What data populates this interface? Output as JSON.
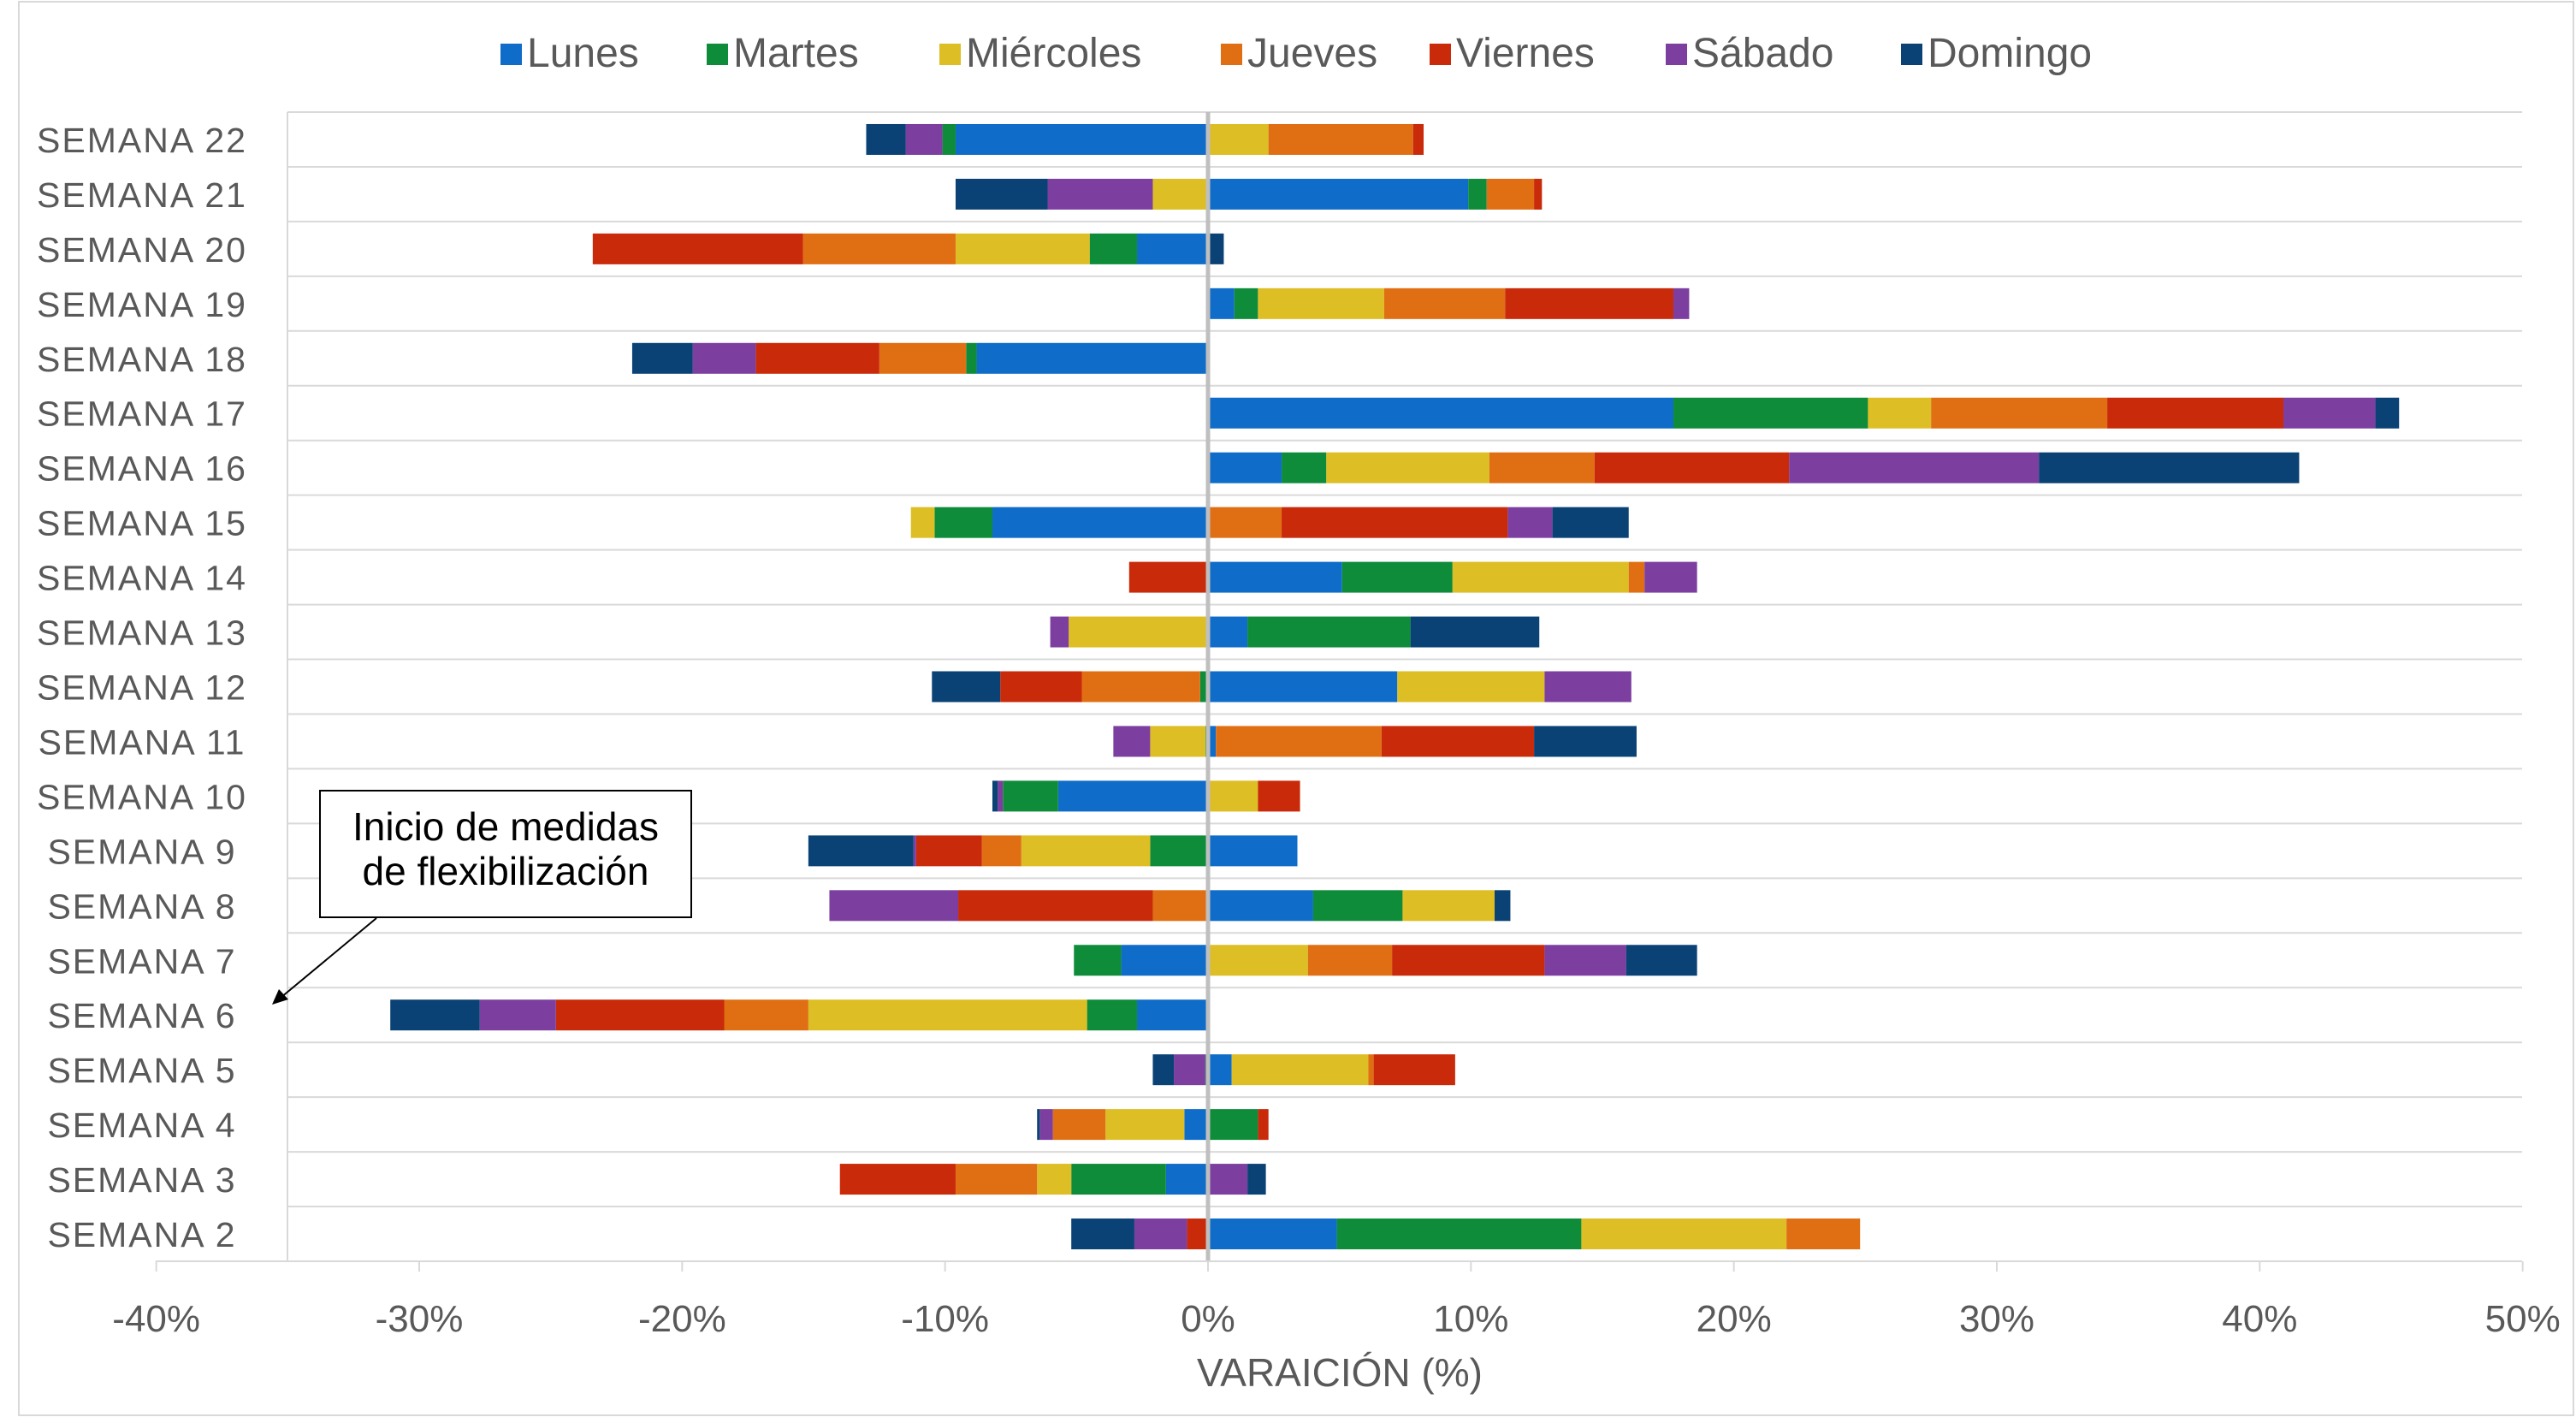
{
  "chart_data": {
    "type": "bar",
    "orientation": "horizontal",
    "stacked": "diverging",
    "title": "",
    "xlabel": "VARAICIÓN (%)",
    "ylabel": "",
    "xlim": [
      -40,
      50
    ],
    "xticks": [
      -40,
      -30,
      -20,
      -10,
      0,
      10,
      20,
      30,
      40,
      50
    ],
    "xtick_labels": [
      "-40%",
      "-30%",
      "-20%",
      "-10%",
      "0%",
      "10%",
      "20%",
      "30%",
      "40%",
      "50%"
    ],
    "grid": true,
    "legend_position": "top",
    "categories": [
      "SEMANA 2",
      "SEMANA 3",
      "SEMANA 4",
      "SEMANA 5",
      "SEMANA 6",
      "SEMANA 7",
      "SEMANA 8",
      "SEMANA 9",
      "SEMANA 10",
      "SEMANA 11",
      "SEMANA 12",
      "SEMANA 13",
      "SEMANA 14",
      "SEMANA 15",
      "SEMANA 16",
      "SEMANA 17",
      "SEMANA 18",
      "SEMANA 19",
      "SEMANA 20",
      "SEMANA 21",
      "SEMANA 22"
    ],
    "series": [
      {
        "name": "Lunes",
        "color": "#0F6CC8",
        "values": [
          4.9,
          -1.6,
          -0.9,
          0.9,
          -2.7,
          -3.3,
          4.0,
          3.4,
          -5.7,
          0.3,
          7.2,
          1.5,
          5.1,
          -8.2,
          2.8,
          17.7,
          -8.8,
          1.0,
          -2.7,
          9.9,
          -9.6
        ]
      },
      {
        "name": "Martes",
        "color": "#0E8C3A",
        "values": [
          9.3,
          -3.6,
          1.9,
          -0.1,
          -1.9,
          -1.8,
          3.4,
          -2.2,
          -2.1,
          -0.1,
          -0.3,
          6.2,
          4.2,
          -2.2,
          1.7,
          7.4,
          -0.4,
          0.9,
          -1.8,
          0.7,
          -0.5
        ]
      },
      {
        "name": "Miércoles",
        "color": "#DDBE24",
        "values": [
          7.8,
          -1.3,
          -3.0,
          5.2,
          -10.6,
          3.8,
          3.5,
          -4.9,
          1.9,
          -2.1,
          5.6,
          -5.3,
          6.7,
          -0.9,
          6.2,
          2.4,
          0.0,
          4.8,
          -5.1,
          -2.1,
          2.3
        ]
      },
      {
        "name": "Jueves",
        "color": "#E06F14",
        "values": [
          2.8,
          -3.1,
          -2.0,
          0.2,
          -3.2,
          3.2,
          -2.1,
          -1.5,
          0.0,
          6.3,
          -4.5,
          0.0,
          0.6,
          2.8,
          4.0,
          6.7,
          -3.3,
          4.6,
          -5.8,
          1.8,
          5.5
        ]
      },
      {
        "name": "Viernes",
        "color": "#C92A0A",
        "values": [
          -0.8,
          -4.4,
          0.4,
          3.1,
          -6.4,
          5.8,
          -7.4,
          -2.5,
          1.6,
          5.8,
          -3.1,
          0.0,
          -3.0,
          8.6,
          7.4,
          6.7,
          -4.7,
          6.4,
          -8.0,
          0.3,
          0.4
        ]
      },
      {
        "name": "Sábado",
        "color": "#7C3FA0",
        "values": [
          -2.0,
          1.5,
          -0.5,
          -1.2,
          -2.9,
          3.1,
          -4.9,
          -0.1,
          -0.2,
          -1.4,
          3.3,
          -0.7,
          2.0,
          1.7,
          9.5,
          3.5,
          -2.4,
          0.6,
          0.0,
          -4.0,
          -1.4
        ]
      },
      {
        "name": "Domingo",
        "color": "#0B4275",
        "values": [
          -2.4,
          0.7,
          -0.1,
          -0.8,
          -3.4,
          2.7,
          0.6,
          -4.0,
          -0.2,
          3.9,
          -2.6,
          4.9,
          0.0,
          2.9,
          9.9,
          0.9,
          -2.3,
          0.0,
          0.6,
          -3.5,
          -1.5
        ]
      }
    ],
    "annotations": [
      {
        "text_lines": [
          "Inicio de medidas",
          "de flexibilización"
        ],
        "points_to": "SEMANA 6"
      }
    ]
  }
}
